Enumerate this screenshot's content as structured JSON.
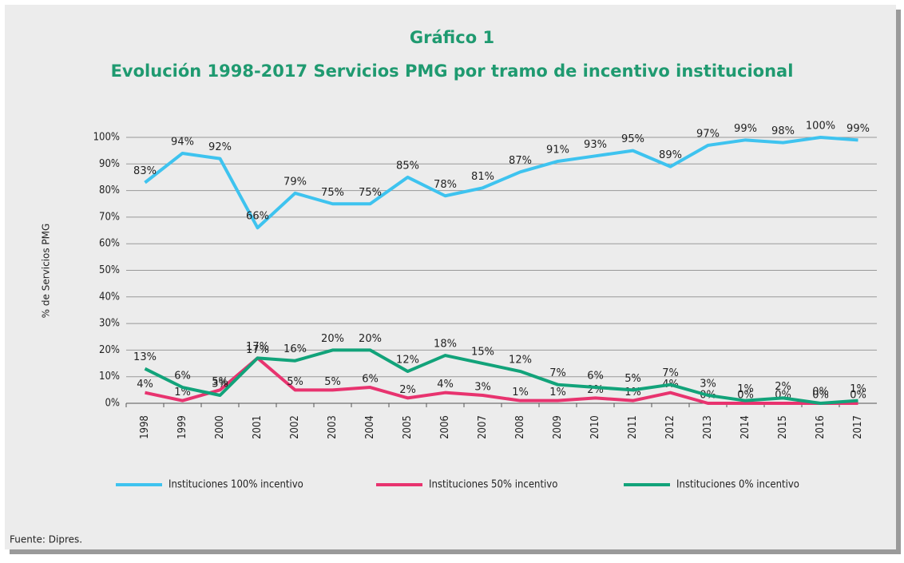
{
  "chart_data": {
    "type": "line",
    "title": "Gráfico 1",
    "subtitle": "Evolución 1998-2017 Servicios PMG por tramo de incentivo institucional",
    "y_label": "% de Servicios PMG",
    "source": "Fuente: Dipres.",
    "categories": [
      "1998",
      "1999",
      "2000",
      "2001",
      "2002",
      "2003",
      "2004",
      "2005",
      "2006",
      "2007",
      "2008",
      "2009",
      "2010",
      "2011",
      "2012",
      "2013",
      "2014",
      "2015",
      "2016",
      "2017"
    ],
    "series": [
      {
        "name": "Instituciones 100% incentivo",
        "color": "#3ec3ef",
        "values": [
          83,
          94,
          92,
          66,
          79,
          75,
          75,
          85,
          78,
          81,
          87,
          91,
          93,
          95,
          89,
          97,
          99,
          98,
          100,
          99
        ],
        "value_labels": [
          "83%",
          "94%",
          "92%",
          "66%",
          "79%",
          "75%",
          "75%",
          "85%",
          "78%",
          "81%",
          "87%",
          "91%",
          "93%",
          "95%",
          "89%",
          "97%",
          "99%",
          "98%",
          "100%",
          "99%"
        ]
      },
      {
        "name": "Instituciones 50% incentivo",
        "color": "#e8336f",
        "values": [
          4,
          1,
          5,
          17,
          5,
          5,
          6,
          2,
          4,
          3,
          1,
          1,
          2,
          1,
          4,
          0,
          0,
          0,
          0,
          0
        ],
        "value_labels": [
          "4%",
          "1%",
          "5%",
          "17%",
          "5%",
          "5%",
          "6%",
          "2%",
          "4%",
          "3%",
          "1%",
          "1%",
          "2%",
          "1%",
          "4%",
          "0%",
          "0%",
          "0%",
          "0%",
          "0%"
        ]
      },
      {
        "name": "Instituciones 0% incentivo",
        "color": "#12a37a",
        "values": [
          13,
          6,
          3,
          17,
          16,
          20,
          20,
          12,
          18,
          15,
          12,
          7,
          6,
          5,
          7,
          3,
          1,
          2,
          0,
          1
        ],
        "value_labels": [
          "13%",
          "6%",
          "3%",
          "17%",
          "16%",
          "20%",
          "20%",
          "12%",
          "18%",
          "15%",
          "12%",
          "7%",
          "6%",
          "5%",
          "7%",
          "3%",
          "1%",
          "2%",
          "0%",
          "1%"
        ]
      }
    ],
    "ylim": [
      0,
      100
    ],
    "yticks": [
      {
        "value": 0,
        "label": "0%"
      },
      {
        "value": 10,
        "label": "10%"
      },
      {
        "value": 20,
        "label": "20%"
      },
      {
        "value": 30,
        "label": "30%"
      },
      {
        "value": 40,
        "label": "40%"
      },
      {
        "value": 50,
        "label": "50%"
      },
      {
        "value": 60,
        "label": "60%"
      },
      {
        "value": 70,
        "label": "70%"
      },
      {
        "value": 80,
        "label": "80%"
      },
      {
        "value": 90,
        "label": "90%"
      },
      {
        "value": 100,
        "label": "100%"
      }
    ],
    "grid": true,
    "legend": "bottom"
  }
}
